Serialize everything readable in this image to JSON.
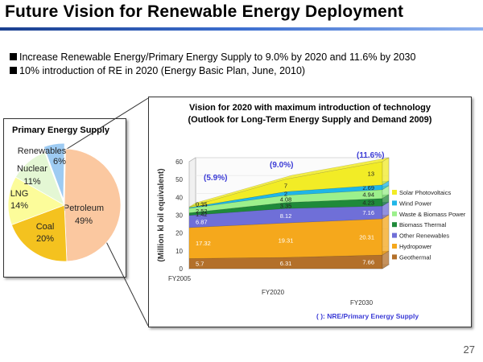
{
  "slide": {
    "title": "Future Vision for Renewable Energy Deployment",
    "bullets": [
      "Increase Renewable Energy/Primary Energy Supply to 9.0% by 2020 and 11.6% by 2030",
      "10% introduction of RE in 2020 (Energy Basic Plan, June, 2010)"
    ],
    "page_number": "27"
  },
  "chart_data": [
    {
      "type": "pie",
      "title": "Primary Energy Supply",
      "slices": [
        {
          "label": "Petroleum",
          "value": 49,
          "display": "49%",
          "color": "#fbc8a0"
        },
        {
          "label": "Coal",
          "value": 20,
          "display": "20%",
          "color": "#f4c21f"
        },
        {
          "label": "LNG",
          "value": 14,
          "display": "14%",
          "color": "#fcfc9a"
        },
        {
          "label": "Nuclear",
          "value": 11,
          "display": "11%",
          "color": "#e4f7d4"
        },
        {
          "label": "Renewables",
          "value": 6,
          "display": "6%",
          "color": "#9ecbf2"
        }
      ]
    },
    {
      "type": "area",
      "title": "Vision for 2020 with maximum introduction of technology",
      "subtitle": "(Outlook for Long-Term Energy Supply and Demand 2009)",
      "ylabel": "(Million kl oil equivalent)",
      "ylim": [
        0,
        60
      ],
      "yticks": [
        "0",
        "10",
        "20",
        "30",
        "40",
        "50",
        "60"
      ],
      "categories": [
        "FY2005",
        "FY2020",
        "FY2030"
      ],
      "series": [
        {
          "name": "Geothermal",
          "values": [
            5.7,
            6.31,
            7.66
          ],
          "labels": [
            "5.7",
            "6.31",
            "7.66"
          ],
          "color": "#b3702a"
        },
        {
          "name": "Hydropower",
          "values": [
            17.32,
            19.31,
            20.31
          ],
          "labels": [
            "17.32",
            "19.31",
            "20.31"
          ],
          "color": "#f5a81c"
        },
        {
          "name": "Other Renewables",
          "values": [
            6.87,
            8.12,
            7.16
          ],
          "labels": [
            "6.87",
            "8.12",
            "7.16"
          ],
          "color": "#6f6fd8"
        },
        {
          "name": "Biomass Thermal",
          "values": [
            1.42,
            3.35,
            4.23
          ],
          "labels": [
            "1.42",
            "3.35",
            "4.23"
          ],
          "color": "#1f8a3a"
        },
        {
          "name": "Waste & Biomass Power",
          "values": [
            2.52,
            4.08,
            4.94
          ],
          "labels": [
            "2.52",
            "4.08",
            "4.94"
          ],
          "color": "#9cf08c"
        },
        {
          "name": "Wind Power",
          "values": [
            0.44,
            2,
            2.69
          ],
          "labels": [
            "0.44",
            "2",
            "2.69"
          ],
          "color": "#1fb6e8"
        },
        {
          "name": "Solar Photovoltaics",
          "values": [
            0.35,
            7,
            13
          ],
          "labels": [
            "0.35",
            "7",
            "13"
          ],
          "color": "#f2ec26"
        }
      ],
      "annotations": [
        {
          "text": "(5.9%)",
          "category": "FY2005"
        },
        {
          "text": "(9.0%)",
          "category": "FY2020"
        },
        {
          "text": "(11.6%)",
          "category": "FY2030"
        }
      ],
      "footnote": "(    ): NRE/Primary Energy Supply",
      "legend_order": [
        "Solar Photovoltaics",
        "Wind Power",
        "Waste & Biomass Power",
        "Biomass Thermal",
        "Other Renewables",
        "Hydropower",
        "Geothermal"
      ]
    }
  ]
}
